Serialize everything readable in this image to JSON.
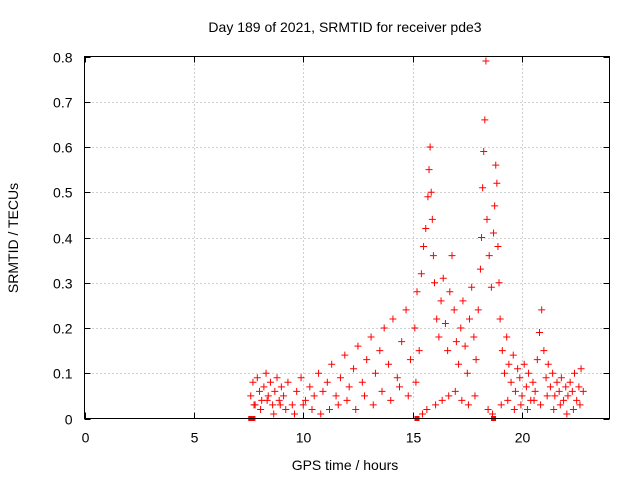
{
  "chart_data": {
    "type": "scatter",
    "title": "Day 189 of 2021, SRMTID for receiver pde3",
    "xlabel": "GPS time / hours",
    "ylabel": "SRMTID / TECUs",
    "xlim": [
      0,
      24
    ],
    "ylim": [
      0,
      0.8
    ],
    "xticks": [
      0,
      5,
      10,
      15,
      20
    ],
    "xtick_labels": [
      "0",
      "5",
      "10",
      "15",
      "20"
    ],
    "yticks": [
      0,
      0.1,
      0.2,
      0.3,
      0.4,
      0.5,
      0.6,
      0.7,
      0.8
    ],
    "ytick_labels": [
      "0",
      "0.1",
      "0.2",
      "0.3",
      "0.4",
      "0.5",
      "0.6",
      "0.7",
      "0.8"
    ],
    "grid": true,
    "marker": "+",
    "color": "#ff0000",
    "series": [
      {
        "name": "pde3",
        "x": [
          7.6,
          7.7,
          7.8,
          7.9,
          8.0,
          8.1,
          8.2,
          8.3,
          8.4,
          8.5,
          8.6,
          8.7,
          8.8,
          8.9,
          9.0,
          9.1,
          9.3,
          9.5,
          9.7,
          9.9,
          10.1,
          10.3,
          10.5,
          10.7,
          10.9,
          11.1,
          11.3,
          11.5,
          11.7,
          11.9,
          12.1,
          12.3,
          12.5,
          12.7,
          12.9,
          13.1,
          13.3,
          13.5,
          13.7,
          13.9,
          14.1,
          14.3,
          14.5,
          14.7,
          14.9,
          15.1,
          15.2,
          15.3,
          15.4,
          15.5,
          15.6,
          15.7,
          15.75,
          15.8,
          15.85,
          15.9,
          15.95,
          16.0,
          16.1,
          16.2,
          16.3,
          16.4,
          16.5,
          16.6,
          16.7,
          16.8,
          16.9,
          17.0,
          17.1,
          17.2,
          17.3,
          17.4,
          17.5,
          17.6,
          17.7,
          17.8,
          17.9,
          18.0,
          18.1,
          18.15,
          18.2,
          18.25,
          18.3,
          18.35,
          18.4,
          18.5,
          18.6,
          18.7,
          18.75,
          18.8,
          18.85,
          18.9,
          18.95,
          19.0,
          19.1,
          19.2,
          19.3,
          19.4,
          19.5,
          19.6,
          19.7,
          19.8,
          19.9,
          20.0,
          20.1,
          20.2,
          20.3,
          20.4,
          20.5,
          20.6,
          20.7,
          20.8,
          20.9,
          21.0,
          21.1,
          21.2,
          21.3,
          21.4,
          21.5,
          21.6,
          21.7,
          21.8,
          21.9,
          22.0,
          22.1,
          22.2,
          22.3,
          22.4,
          22.5,
          22.6,
          22.7,
          22.8,
          7.75,
          8.05,
          8.35,
          8.65,
          8.95,
          9.2,
          9.6,
          10.0,
          10.4,
          10.8,
          11.2,
          11.6,
          12.0,
          12.4,
          12.8,
          13.2,
          13.6,
          14.0,
          14.4,
          14.8,
          15.15,
          15.45,
          15.65,
          16.05,
          16.35,
          16.65,
          16.95,
          17.25,
          17.55,
          17.85,
          18.45,
          18.65,
          19.05,
          19.35,
          19.65,
          19.95,
          20.25,
          20.55,
          20.85,
          21.15,
          21.45,
          21.75,
          22.05,
          22.35,
          22.65
        ],
        "y": [
          0.05,
          0.08,
          0.03,
          0.09,
          0.06,
          0.04,
          0.07,
          0.1,
          0.05,
          0.08,
          0.03,
          0.06,
          0.09,
          0.04,
          0.07,
          0.05,
          0.08,
          0.03,
          0.06,
          0.09,
          0.04,
          0.07,
          0.05,
          0.1,
          0.06,
          0.08,
          0.12,
          0.05,
          0.09,
          0.14,
          0.07,
          0.11,
          0.16,
          0.08,
          0.13,
          0.18,
          0.1,
          0.15,
          0.2,
          0.12,
          0.22,
          0.09,
          0.17,
          0.24,
          0.13,
          0.2,
          0.28,
          0.15,
          0.32,
          0.38,
          0.42,
          0.49,
          0.55,
          0.6,
          0.5,
          0.44,
          0.36,
          0.3,
          0.22,
          0.18,
          0.26,
          0.31,
          0.21,
          0.15,
          0.28,
          0.36,
          0.24,
          0.17,
          0.12,
          0.2,
          0.26,
          0.16,
          0.1,
          0.22,
          0.29,
          0.18,
          0.13,
          0.24,
          0.33,
          0.4,
          0.51,
          0.59,
          0.66,
          0.79,
          0.44,
          0.36,
          0.29,
          0.41,
          0.47,
          0.56,
          0.52,
          0.38,
          0.3,
          0.22,
          0.15,
          0.1,
          0.18,
          0.12,
          0.08,
          0.14,
          0.06,
          0.11,
          0.09,
          0.05,
          0.12,
          0.07,
          0.1,
          0.04,
          0.08,
          0.06,
          0.13,
          0.19,
          0.24,
          0.15,
          0.09,
          0.12,
          0.07,
          0.1,
          0.05,
          0.08,
          0.06,
          0.09,
          0.04,
          0.07,
          0.05,
          0.08,
          0.06,
          0.1,
          0.04,
          0.07,
          0.11,
          0.06,
          0.03,
          0.02,
          0.04,
          0.01,
          0.03,
          0.02,
          0.01,
          0.03,
          0.02,
          0.01,
          0.02,
          0.03,
          0.04,
          0.02,
          0.05,
          0.03,
          0.06,
          0.04,
          0.07,
          0.05,
          0.08,
          0.01,
          0.02,
          0.03,
          0.04,
          0.05,
          0.06,
          0.04,
          0.03,
          0.05,
          0.02,
          0.01,
          0.03,
          0.04,
          0.02,
          0.03,
          0.02,
          0.04,
          0.03,
          0.05,
          0.02,
          0.03,
          0.01,
          0.02,
          0.03
        ],
        "zero_markers_x": [
          7.6,
          7.7,
          15.2,
          18.7
        ]
      }
    ]
  }
}
